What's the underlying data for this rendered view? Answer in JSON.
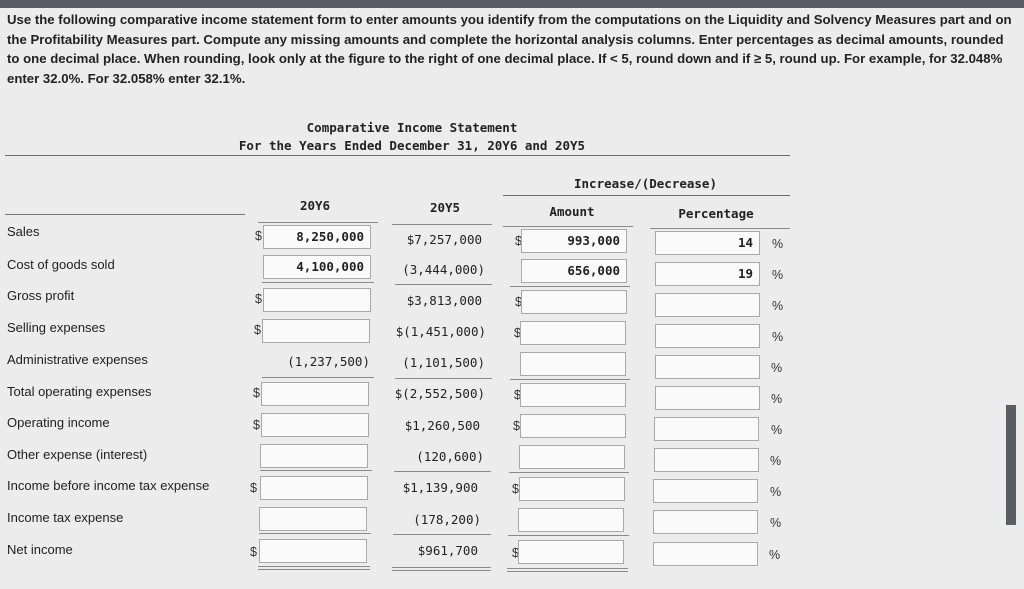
{
  "instructions": "Use the following comparative income statement form to enter amounts you identify from the computations on the Liquidity and Solvency Measures part and on the Profitability Measures part. Compute any missing amounts and complete the horizontal analysis columns. Enter percentages as decimal amounts, rounded to one decimal place. When rounding, look only at the figure to the right of one decimal place. If < 5, round down and if ≥ 5, round up. For example, for 32.048% enter 32.0%. For 32.058% enter 32.1%.",
  "statement": {
    "title": "Comparative Income Statement",
    "subtitle": "For the Years Ended December 31, 20Y6 and 20Y5"
  },
  "headers": {
    "increase_decrease": "Increase/(Decrease)",
    "y6": "20Y6",
    "y5": "20Y5",
    "amount": "Amount",
    "percentage": "Percentage"
  },
  "symbols": {
    "dollar": "$",
    "percent": "%"
  },
  "rows": [
    {
      "label": "Sales",
      "y6": "8,250,000",
      "y5": "$7,257,000",
      "amount": "993,000",
      "pct": "14"
    },
    {
      "label": "Cost of goods sold",
      "y6": "4,100,000",
      "y5": "(3,444,000)",
      "amount": "656,000",
      "pct": "19"
    },
    {
      "label": "Gross profit",
      "y6": "",
      "y5": "$3,813,000",
      "amount": "",
      "pct": ""
    },
    {
      "label": "Selling expenses",
      "y6": "",
      "y5": "$(1,451,000)",
      "amount": "",
      "pct": ""
    },
    {
      "label": "Administrative expenses",
      "y6": "(1,237,500)",
      "y5": "(1,101,500)",
      "amount": "",
      "pct": ""
    },
    {
      "label": "Total operating expenses",
      "y6": "",
      "y5": "$(2,552,500)",
      "amount": "",
      "pct": ""
    },
    {
      "label": "Operating income",
      "y6": "",
      "y5": "$1,260,500",
      "amount": "",
      "pct": ""
    },
    {
      "label": "Other expense (interest)",
      "y6": "",
      "y5": "(120,600)",
      "amount": "",
      "pct": ""
    },
    {
      "label": "Income before income tax expense",
      "y6": "",
      "y5": "$1,139,900",
      "amount": "",
      "pct": ""
    },
    {
      "label": "Income tax expense",
      "y6": "",
      "y5": "(178,200)",
      "amount": "",
      "pct": ""
    },
    {
      "label": "Net income",
      "y6": "",
      "y5": "$961,700",
      "amount": "",
      "pct": ""
    }
  ]
}
